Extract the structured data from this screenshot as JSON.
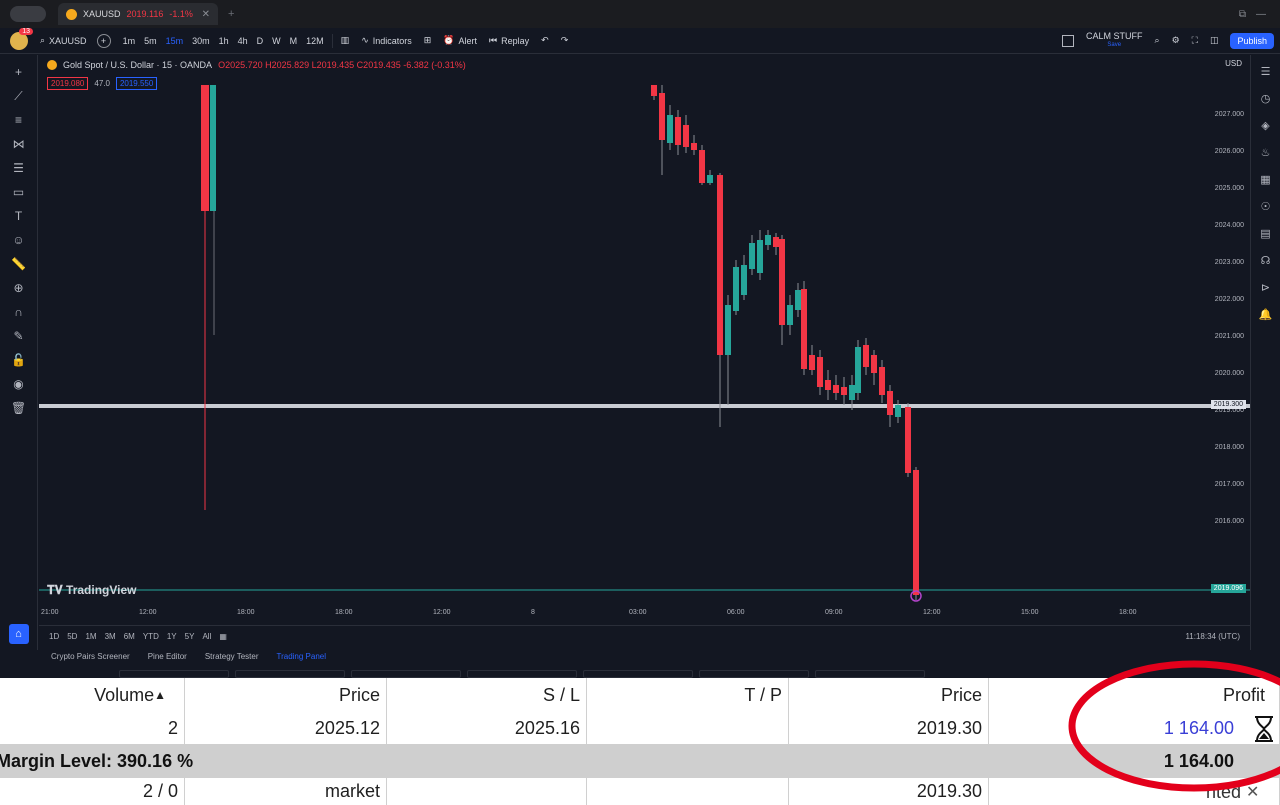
{
  "browser": {
    "tab_title": "XAUUSD",
    "tab_price": "2019.116",
    "tab_change": "-1.1%"
  },
  "toolbar": {
    "symbol": "XAUUSD",
    "intervals": [
      "1m",
      "5m",
      "15m",
      "30m",
      "1h",
      "4h",
      "D",
      "W",
      "M",
      "12M"
    ],
    "active_interval": "15m",
    "indicators_label": "Indicators",
    "alert_label": "Alert",
    "replay_label": "Replay",
    "layout_name": "CALM STUFF",
    "layout_sub": "Save",
    "publish_label": "Publish",
    "avatar_badge": "13"
  },
  "chart": {
    "legend_title": "Gold Spot / U.S. Dollar · 15 · OANDA",
    "legend_ohlc": "O2025.720 H2025.829 L2019.435 C2019.435 -6.382 (-0.31%)",
    "bid": "2019.080",
    "spread": "47.0",
    "ask": "2019.550",
    "currency": "USD",
    "logo": "TradingView",
    "price_ticks": [
      "2027.000",
      "2026.000",
      "2025.000",
      "2024.000",
      "2023.000",
      "2022.000",
      "2021.000",
      "2020.000",
      "2019.000",
      "2018.000",
      "2017.000",
      "2016.000"
    ],
    "hline_label": "2019.300",
    "last_price_label": "2019.096",
    "time_ticks": [
      "21:00",
      "12:00",
      "18:00",
      "18:00",
      "12:00",
      "8",
      "03:00",
      "06:00",
      "09:00",
      "12:00",
      "15:00",
      "18:00"
    ],
    "ranges": [
      "1D",
      "5D",
      "1M",
      "3M",
      "6M",
      "YTD",
      "1Y",
      "5Y",
      "All"
    ],
    "clock": "11:18:34 (UTC)"
  },
  "bottom_panel": {
    "tabs": [
      "Crypto Pairs Screener",
      "Pine Editor",
      "Strategy Tester",
      "Trading Panel"
    ],
    "active_tab": "Trading Panel"
  },
  "trade_table": {
    "headers": [
      "Volume",
      "Price",
      "S / L",
      "T / P",
      "Price",
      "Profit"
    ],
    "row1": [
      "2",
      "2025.12",
      "2025.16",
      "",
      "2019.30",
      "1 164.00"
    ],
    "margin_label": "Margin Level: 390.16 %",
    "margin_total": "1 164.00",
    "row2": [
      "2 / 0",
      "market",
      "",
      "",
      "2019.30",
      ""
    ],
    "row2_tail": "nted"
  },
  "colors": {
    "bull": "#26a69a",
    "bear": "#f23645",
    "accent": "#2962ff",
    "profit": "#3a3fd6",
    "annotation": "#e3001b"
  },
  "icons": [
    "crosshair-icon",
    "trendline-icon",
    "fib-icon",
    "pattern-icon",
    "text-icon",
    "measure-icon",
    "zoom-icon",
    "magnet-icon",
    "lock-icon",
    "eye-icon",
    "trash-icon",
    "hourglass-icon",
    "close-icon"
  ]
}
